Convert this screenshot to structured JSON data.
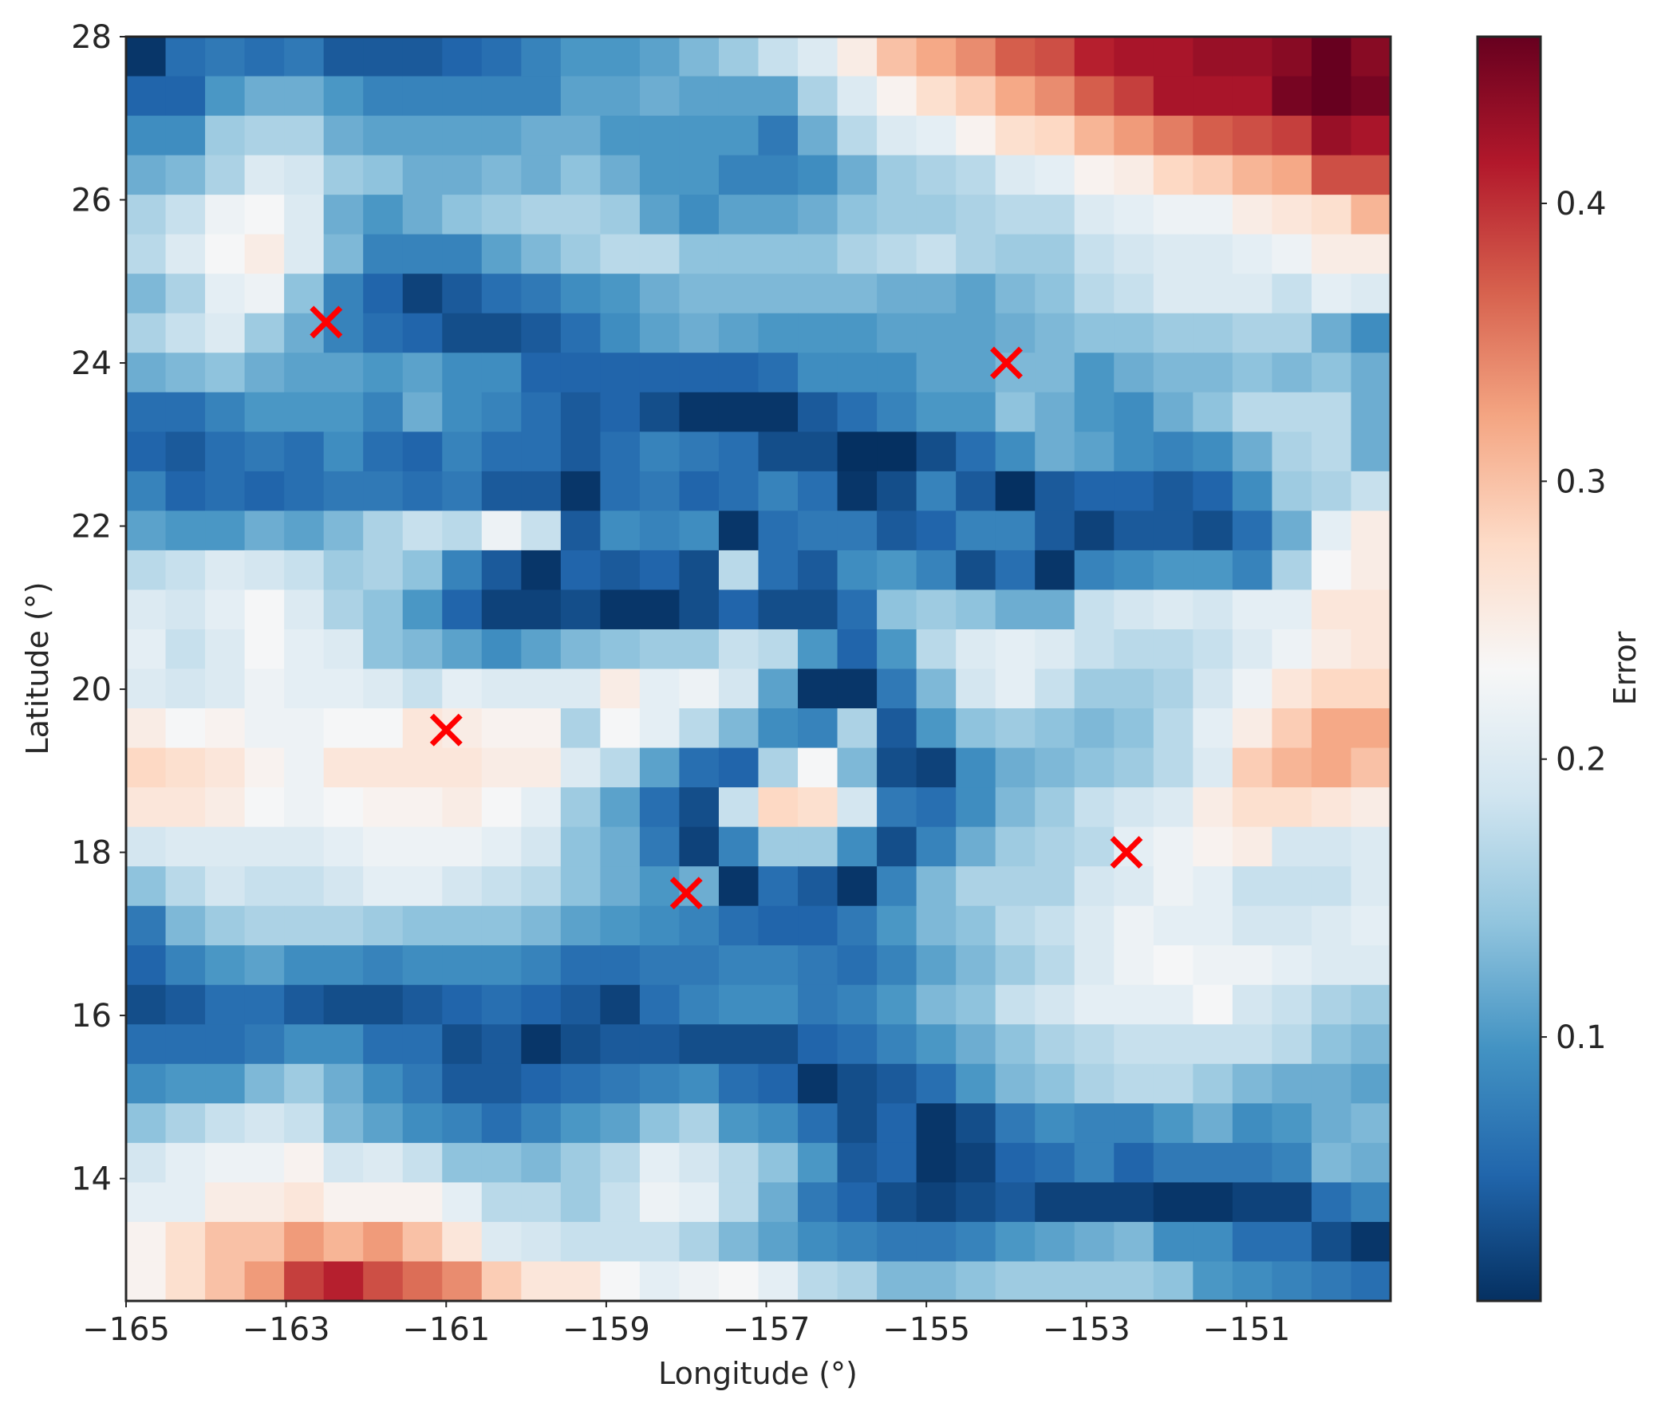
{
  "chart_data": {
    "type": "heatmap",
    "xlabel": "Longitude (°)",
    "ylabel": "Latitude (°)",
    "xlim": [
      -165,
      -149.2
    ],
    "ylim": [
      12.5,
      28
    ],
    "x_ticks": [
      -165,
      -163,
      -161,
      -159,
      -157,
      -155,
      -153,
      -151
    ],
    "x_tick_labels": [
      "−165",
      "−163",
      "−161",
      "−159",
      "−157",
      "−155",
      "−153",
      "−151"
    ],
    "y_ticks": [
      14,
      16,
      18,
      20,
      22,
      24,
      26,
      28
    ],
    "y_tick_labels": [
      "14",
      "16",
      "18",
      "20",
      "22",
      "24",
      "26",
      "28"
    ],
    "colorbar": {
      "label": "Error",
      "colormap": "RdBu_r",
      "vmin": 0.005,
      "vmax": 0.46,
      "ticks": [
        0.1,
        0.2,
        0.3,
        0.4
      ],
      "tick_labels": [
        "0.1",
        "0.2",
        "0.3",
        "0.4"
      ]
    },
    "grid_cols": 32,
    "grid_rows": 32,
    "cell_size_deg": [
      0.5,
      0.5
    ],
    "row_order": "top (28°) to bottom (12.5°)",
    "z_rows_top_to_bottom": [
      [
        0.01,
        0.06,
        0.07,
        0.06,
        0.07,
        0.04,
        0.04,
        0.04,
        0.05,
        0.06,
        0.08,
        0.1,
        0.1,
        0.11,
        0.13,
        0.15,
        0.18,
        0.2,
        0.25,
        0.3,
        0.32,
        0.34,
        0.37,
        0.38,
        0.41,
        0.42,
        0.42,
        0.43,
        0.43,
        0.44,
        0.46,
        0.44
      ],
      [
        0.05,
        0.05,
        0.1,
        0.12,
        0.12,
        0.1,
        0.08,
        0.08,
        0.08,
        0.08,
        0.08,
        0.11,
        0.11,
        0.12,
        0.11,
        0.11,
        0.11,
        0.16,
        0.2,
        0.24,
        0.27,
        0.29,
        0.32,
        0.34,
        0.37,
        0.39,
        0.42,
        0.42,
        0.42,
        0.45,
        0.46,
        0.45
      ],
      [
        0.09,
        0.09,
        0.15,
        0.16,
        0.16,
        0.12,
        0.11,
        0.11,
        0.11,
        0.11,
        0.12,
        0.12,
        0.1,
        0.1,
        0.1,
        0.1,
        0.07,
        0.12,
        0.17,
        0.2,
        0.21,
        0.24,
        0.27,
        0.28,
        0.31,
        0.33,
        0.35,
        0.37,
        0.38,
        0.39,
        0.43,
        0.42
      ],
      [
        0.12,
        0.13,
        0.16,
        0.2,
        0.19,
        0.15,
        0.14,
        0.12,
        0.12,
        0.13,
        0.12,
        0.14,
        0.12,
        0.1,
        0.1,
        0.08,
        0.08,
        0.09,
        0.12,
        0.15,
        0.16,
        0.17,
        0.2,
        0.21,
        0.24,
        0.25,
        0.28,
        0.29,
        0.31,
        0.32,
        0.38,
        0.38
      ],
      [
        0.16,
        0.18,
        0.22,
        0.23,
        0.2,
        0.12,
        0.1,
        0.12,
        0.14,
        0.15,
        0.16,
        0.16,
        0.15,
        0.11,
        0.09,
        0.11,
        0.11,
        0.12,
        0.14,
        0.15,
        0.15,
        0.16,
        0.17,
        0.17,
        0.2,
        0.21,
        0.22,
        0.22,
        0.25,
        0.26,
        0.27,
        0.31
      ],
      [
        0.17,
        0.2,
        0.23,
        0.25,
        0.2,
        0.13,
        0.08,
        0.08,
        0.08,
        0.11,
        0.13,
        0.15,
        0.17,
        0.17,
        0.14,
        0.14,
        0.14,
        0.14,
        0.16,
        0.17,
        0.18,
        0.16,
        0.15,
        0.15,
        0.18,
        0.19,
        0.2,
        0.2,
        0.21,
        0.22,
        0.25,
        0.25
      ],
      [
        0.13,
        0.16,
        0.21,
        0.22,
        0.14,
        0.08,
        0.05,
        0.02,
        0.04,
        0.06,
        0.07,
        0.09,
        0.1,
        0.12,
        0.13,
        0.13,
        0.13,
        0.13,
        0.13,
        0.12,
        0.12,
        0.11,
        0.13,
        0.14,
        0.17,
        0.18,
        0.2,
        0.2,
        0.2,
        0.18,
        0.21,
        0.2
      ],
      [
        0.16,
        0.18,
        0.2,
        0.15,
        0.12,
        0.08,
        0.06,
        0.05,
        0.03,
        0.03,
        0.04,
        0.06,
        0.09,
        0.11,
        0.12,
        0.11,
        0.1,
        0.1,
        0.1,
        0.11,
        0.11,
        0.11,
        0.12,
        0.13,
        0.14,
        0.14,
        0.15,
        0.15,
        0.16,
        0.16,
        0.12,
        0.09
      ],
      [
        0.12,
        0.13,
        0.14,
        0.12,
        0.11,
        0.11,
        0.1,
        0.11,
        0.09,
        0.09,
        0.05,
        0.05,
        0.05,
        0.05,
        0.05,
        0.05,
        0.06,
        0.09,
        0.09,
        0.09,
        0.11,
        0.11,
        0.13,
        0.13,
        0.1,
        0.12,
        0.13,
        0.13,
        0.14,
        0.13,
        0.14,
        0.12
      ],
      [
        0.06,
        0.06,
        0.08,
        0.1,
        0.1,
        0.1,
        0.08,
        0.12,
        0.09,
        0.08,
        0.06,
        0.04,
        0.05,
        0.03,
        0.01,
        0.01,
        0.01,
        0.04,
        0.06,
        0.08,
        0.1,
        0.1,
        0.14,
        0.12,
        0.1,
        0.09,
        0.12,
        0.14,
        0.17,
        0.17,
        0.17,
        0.12
      ],
      [
        0.05,
        0.04,
        0.06,
        0.07,
        0.06,
        0.09,
        0.06,
        0.05,
        0.08,
        0.06,
        0.06,
        0.04,
        0.06,
        0.08,
        0.07,
        0.06,
        0.03,
        0.03,
        0.0,
        0.0,
        0.03,
        0.06,
        0.09,
        0.12,
        0.11,
        0.09,
        0.08,
        0.09,
        0.12,
        0.16,
        0.17,
        0.12
      ],
      [
        0.08,
        0.05,
        0.06,
        0.05,
        0.06,
        0.07,
        0.07,
        0.06,
        0.07,
        0.04,
        0.04,
        0.01,
        0.06,
        0.07,
        0.05,
        0.06,
        0.08,
        0.06,
        0.01,
        0.03,
        0.08,
        0.04,
        0.0,
        0.04,
        0.05,
        0.05,
        0.04,
        0.05,
        0.09,
        0.15,
        0.16,
        0.18
      ],
      [
        0.11,
        0.1,
        0.1,
        0.12,
        0.11,
        0.13,
        0.16,
        0.18,
        0.17,
        0.22,
        0.18,
        0.04,
        0.09,
        0.08,
        0.09,
        0.01,
        0.06,
        0.07,
        0.07,
        0.04,
        0.05,
        0.08,
        0.08,
        0.04,
        0.02,
        0.04,
        0.04,
        0.03,
        0.06,
        0.12,
        0.21,
        0.25
      ],
      [
        0.17,
        0.18,
        0.2,
        0.19,
        0.18,
        0.15,
        0.16,
        0.14,
        0.08,
        0.04,
        0.01,
        0.05,
        0.04,
        0.05,
        0.03,
        0.17,
        0.06,
        0.04,
        0.09,
        0.1,
        0.08,
        0.03,
        0.06,
        0.01,
        0.08,
        0.09,
        0.1,
        0.1,
        0.08,
        0.16,
        0.23,
        0.25
      ],
      [
        0.2,
        0.19,
        0.21,
        0.23,
        0.2,
        0.16,
        0.14,
        0.1,
        0.05,
        0.02,
        0.02,
        0.03,
        0.01,
        0.01,
        0.03,
        0.05,
        0.03,
        0.03,
        0.06,
        0.14,
        0.15,
        0.14,
        0.12,
        0.12,
        0.18,
        0.19,
        0.2,
        0.19,
        0.21,
        0.21,
        0.26,
        0.26
      ],
      [
        0.21,
        0.18,
        0.2,
        0.23,
        0.21,
        0.2,
        0.14,
        0.13,
        0.11,
        0.09,
        0.11,
        0.13,
        0.14,
        0.15,
        0.15,
        0.18,
        0.17,
        0.1,
        0.05,
        0.1,
        0.17,
        0.2,
        0.21,
        0.2,
        0.18,
        0.17,
        0.17,
        0.18,
        0.2,
        0.22,
        0.25,
        0.26
      ],
      [
        0.2,
        0.19,
        0.2,
        0.22,
        0.21,
        0.21,
        0.2,
        0.18,
        0.21,
        0.2,
        0.2,
        0.2,
        0.25,
        0.21,
        0.22,
        0.19,
        0.11,
        0.01,
        0.01,
        0.07,
        0.13,
        0.19,
        0.21,
        0.18,
        0.15,
        0.15,
        0.16,
        0.19,
        0.22,
        0.26,
        0.28,
        0.28
      ],
      [
        0.25,
        0.23,
        0.24,
        0.22,
        0.22,
        0.23,
        0.23,
        0.26,
        0.25,
        0.24,
        0.24,
        0.16,
        0.23,
        0.21,
        0.17,
        0.13,
        0.09,
        0.08,
        0.16,
        0.04,
        0.1,
        0.14,
        0.15,
        0.14,
        0.13,
        0.14,
        0.17,
        0.21,
        0.25,
        0.29,
        0.32,
        0.32
      ],
      [
        0.28,
        0.27,
        0.26,
        0.24,
        0.22,
        0.26,
        0.26,
        0.26,
        0.26,
        0.25,
        0.25,
        0.2,
        0.17,
        0.11,
        0.06,
        0.05,
        0.16,
        0.23,
        0.13,
        0.03,
        0.02,
        0.09,
        0.12,
        0.13,
        0.14,
        0.15,
        0.17,
        0.2,
        0.29,
        0.31,
        0.32,
        0.3
      ],
      [
        0.26,
        0.26,
        0.25,
        0.23,
        0.22,
        0.23,
        0.24,
        0.24,
        0.25,
        0.23,
        0.21,
        0.15,
        0.11,
        0.06,
        0.03,
        0.18,
        0.28,
        0.27,
        0.19,
        0.07,
        0.06,
        0.09,
        0.13,
        0.15,
        0.18,
        0.19,
        0.2,
        0.25,
        0.27,
        0.27,
        0.26,
        0.25
      ],
      [
        0.19,
        0.2,
        0.2,
        0.2,
        0.2,
        0.21,
        0.22,
        0.22,
        0.22,
        0.21,
        0.19,
        0.14,
        0.12,
        0.07,
        0.02,
        0.08,
        0.15,
        0.15,
        0.09,
        0.03,
        0.08,
        0.12,
        0.15,
        0.16,
        0.17,
        0.21,
        0.22,
        0.24,
        0.25,
        0.19,
        0.19,
        0.2
      ],
      [
        0.14,
        0.17,
        0.19,
        0.18,
        0.18,
        0.19,
        0.21,
        0.21,
        0.19,
        0.18,
        0.17,
        0.14,
        0.12,
        0.1,
        0.12,
        0.01,
        0.06,
        0.04,
        0.01,
        0.08,
        0.13,
        0.16,
        0.16,
        0.16,
        0.19,
        0.2,
        0.22,
        0.21,
        0.18,
        0.18,
        0.18,
        0.2
      ],
      [
        0.07,
        0.13,
        0.15,
        0.16,
        0.16,
        0.16,
        0.15,
        0.14,
        0.14,
        0.14,
        0.13,
        0.11,
        0.1,
        0.09,
        0.08,
        0.06,
        0.05,
        0.05,
        0.07,
        0.1,
        0.13,
        0.14,
        0.17,
        0.18,
        0.2,
        0.22,
        0.21,
        0.21,
        0.19,
        0.19,
        0.2,
        0.21
      ],
      [
        0.05,
        0.08,
        0.1,
        0.11,
        0.09,
        0.09,
        0.08,
        0.09,
        0.09,
        0.09,
        0.08,
        0.06,
        0.06,
        0.07,
        0.07,
        0.08,
        0.08,
        0.07,
        0.06,
        0.08,
        0.11,
        0.13,
        0.15,
        0.17,
        0.2,
        0.22,
        0.23,
        0.22,
        0.22,
        0.21,
        0.2,
        0.2
      ],
      [
        0.03,
        0.04,
        0.06,
        0.06,
        0.04,
        0.03,
        0.03,
        0.04,
        0.05,
        0.06,
        0.05,
        0.04,
        0.02,
        0.06,
        0.08,
        0.09,
        0.09,
        0.07,
        0.08,
        0.1,
        0.13,
        0.14,
        0.18,
        0.19,
        0.21,
        0.21,
        0.21,
        0.23,
        0.19,
        0.18,
        0.16,
        0.15
      ],
      [
        0.06,
        0.06,
        0.06,
        0.07,
        0.09,
        0.09,
        0.06,
        0.06,
        0.03,
        0.04,
        0.01,
        0.03,
        0.04,
        0.04,
        0.03,
        0.03,
        0.03,
        0.05,
        0.06,
        0.08,
        0.1,
        0.12,
        0.14,
        0.16,
        0.17,
        0.18,
        0.18,
        0.18,
        0.18,
        0.17,
        0.14,
        0.13
      ],
      [
        0.09,
        0.1,
        0.1,
        0.13,
        0.15,
        0.12,
        0.09,
        0.07,
        0.04,
        0.04,
        0.05,
        0.06,
        0.07,
        0.08,
        0.09,
        0.06,
        0.05,
        0.01,
        0.03,
        0.04,
        0.06,
        0.1,
        0.13,
        0.14,
        0.16,
        0.17,
        0.17,
        0.15,
        0.13,
        0.12,
        0.12,
        0.11
      ],
      [
        0.14,
        0.16,
        0.18,
        0.19,
        0.18,
        0.13,
        0.11,
        0.09,
        0.08,
        0.06,
        0.08,
        0.1,
        0.11,
        0.14,
        0.16,
        0.1,
        0.09,
        0.06,
        0.03,
        0.05,
        0.01,
        0.03,
        0.07,
        0.09,
        0.08,
        0.08,
        0.1,
        0.12,
        0.09,
        0.1,
        0.12,
        0.13
      ],
      [
        0.19,
        0.21,
        0.22,
        0.22,
        0.24,
        0.19,
        0.2,
        0.18,
        0.14,
        0.14,
        0.13,
        0.15,
        0.17,
        0.21,
        0.19,
        0.17,
        0.14,
        0.1,
        0.04,
        0.05,
        0.01,
        0.02,
        0.05,
        0.06,
        0.08,
        0.05,
        0.07,
        0.07,
        0.07,
        0.08,
        0.13,
        0.12
      ],
      [
        0.21,
        0.21,
        0.25,
        0.25,
        0.26,
        0.24,
        0.24,
        0.24,
        0.21,
        0.17,
        0.17,
        0.15,
        0.18,
        0.22,
        0.21,
        0.17,
        0.12,
        0.07,
        0.05,
        0.03,
        0.02,
        0.03,
        0.04,
        0.02,
        0.02,
        0.02,
        0.01,
        0.01,
        0.02,
        0.02,
        0.06,
        0.08
      ],
      [
        0.24,
        0.27,
        0.3,
        0.3,
        0.33,
        0.31,
        0.33,
        0.3,
        0.26,
        0.2,
        0.19,
        0.18,
        0.18,
        0.18,
        0.16,
        0.13,
        0.11,
        0.09,
        0.08,
        0.07,
        0.07,
        0.08,
        0.1,
        0.11,
        0.12,
        0.13,
        0.09,
        0.09,
        0.06,
        0.06,
        0.03,
        0.01
      ],
      [
        0.24,
        0.27,
        0.3,
        0.33,
        0.39,
        0.41,
        0.38,
        0.36,
        0.34,
        0.29,
        0.26,
        0.26,
        0.23,
        0.21,
        0.22,
        0.23,
        0.21,
        0.17,
        0.16,
        0.13,
        0.13,
        0.14,
        0.15,
        0.15,
        0.15,
        0.15,
        0.14,
        0.1,
        0.09,
        0.08,
        0.07,
        0.06
      ]
    ],
    "markers": [
      {
        "lon": -162.5,
        "lat": 24.5,
        "symbol": "x",
        "color": "#ff0000"
      },
      {
        "lon": -154,
        "lat": 24,
        "symbol": "x",
        "color": "#ff0000"
      },
      {
        "lon": -161,
        "lat": 19.5,
        "symbol": "x",
        "color": "#ff0000"
      },
      {
        "lon": -152.5,
        "lat": 18,
        "symbol": "x",
        "color": "#ff0000"
      },
      {
        "lon": -158,
        "lat": 17.5,
        "symbol": "x",
        "color": "#ff0000"
      }
    ]
  }
}
